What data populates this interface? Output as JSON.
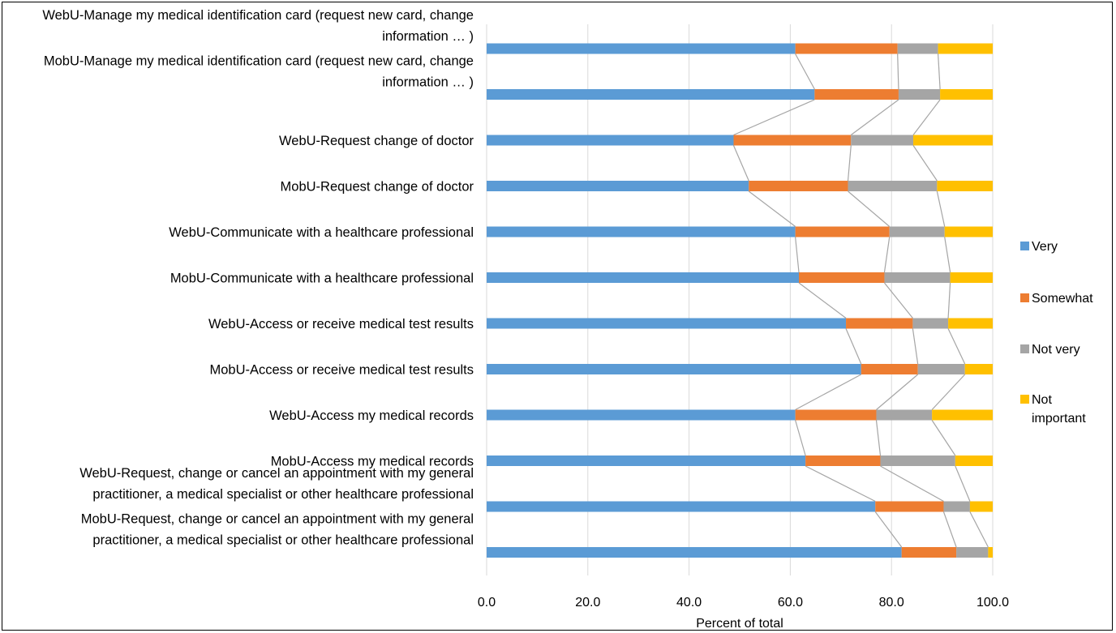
{
  "chart_data": {
    "type": "bar",
    "orientation": "horizontal",
    "stacked": true,
    "percent_stacked": true,
    "series_lines": true,
    "categories": [
      "WebU-Manage my medical identification card (request new card, change information … )",
      "MobU-Manage my medical identification card (request new card, change information … )",
      "WebU-Request change of doctor",
      "MobU-Request change of doctor",
      "WebU-Communicate with a healthcare professional",
      "MobU-Communicate with a healthcare professional",
      "WebU-Access or receive medical test results",
      "MobU-Access or receive medical test results",
      "WebU-Access my medical records",
      "MobU-Access my medical records",
      "WebU-Request, change or cancel an appointment with my general practitioner, a medical specialist or other healthcare professional",
      "MobU-Request, change or cancel an appointment with my general practitioner, a medical specialist or other healthcare professional"
    ],
    "category_lines": [
      [
        "WebU-Manage my medical identification card (request new card, change",
        "information … )"
      ],
      [
        "MobU-Manage my medical identification card (request new card, change",
        "information … )"
      ],
      [
        "WebU-Request change of doctor"
      ],
      [
        "MobU-Request change of doctor"
      ],
      [
        "WebU-Communicate with a healthcare professional"
      ],
      [
        "MobU-Communicate with a healthcare professional"
      ],
      [
        "WebU-Access or receive medical test results"
      ],
      [
        "MobU-Access or receive medical test results"
      ],
      [
        "WebU-Access my medical records"
      ],
      [
        "MobU-Access my medical records"
      ],
      [
        "WebU-Request, change or cancel an appointment with my general",
        "practitioner, a medical specialist or other healthcare professional"
      ],
      [
        "MobU-Request, change or cancel an appointment with my general",
        "practitioner, a medical specialist or other healthcare professional"
      ]
    ],
    "series": [
      {
        "name": "Very",
        "color": "#5B9BD5",
        "values": [
          61.0,
          64.8,
          48.8,
          51.8,
          61.0,
          61.7,
          71.0,
          74.0,
          61.0,
          63.0,
          76.8,
          82.0
        ]
      },
      {
        "name": "Somewhat",
        "color": "#ED7D31",
        "values": [
          20.2,
          16.6,
          23.2,
          19.6,
          18.6,
          16.9,
          13.2,
          11.2,
          16.0,
          14.8,
          13.5,
          10.8
        ]
      },
      {
        "name": "Not very",
        "color": "#A5A5A5",
        "values": [
          8.0,
          8.2,
          12.3,
          17.6,
          10.9,
          13.0,
          7.0,
          9.3,
          11.0,
          14.8,
          5.2,
          6.3
        ]
      },
      {
        "name": "Not important",
        "color": "#FFC000",
        "values": [
          10.8,
          10.4,
          15.7,
          11.0,
          9.5,
          8.4,
          8.8,
          5.5,
          12.0,
          7.4,
          4.5,
          0.9
        ]
      }
    ],
    "xlabel": "Percent of total",
    "ylabel": "",
    "xlim": [
      0,
      100
    ],
    "xticks": [
      "0.0",
      "20.0",
      "40.0",
      "60.0",
      "80.0",
      "100.0"
    ],
    "grid": true,
    "legend_position": "right",
    "legend_lines": [
      [
        "Very"
      ],
      [
        "Somewhat"
      ],
      [
        "Not very"
      ],
      [
        "Not",
        "important"
      ]
    ]
  }
}
